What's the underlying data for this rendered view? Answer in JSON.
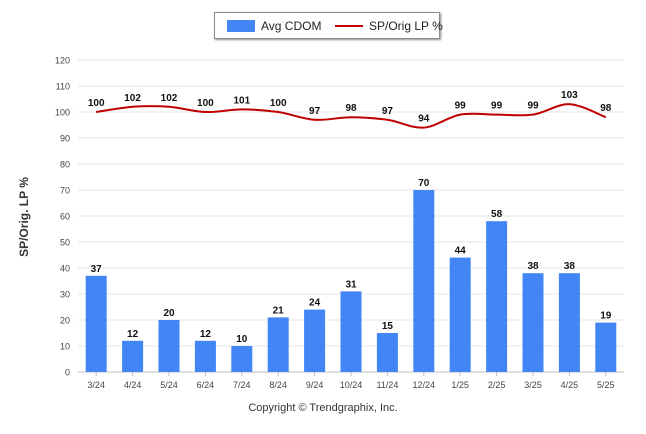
{
  "chart_data": {
    "type": "bar",
    "categories": [
      "3/24",
      "4/24",
      "5/24",
      "6/24",
      "7/24",
      "8/24",
      "9/24",
      "10/24",
      "11/24",
      "12/24",
      "1/25",
      "2/25",
      "3/25",
      "4/25",
      "5/25"
    ],
    "series": [
      {
        "name": "Avg CDOM",
        "type": "bar",
        "color": "#4285f4",
        "values": [
          37,
          12,
          20,
          12,
          10,
          21,
          24,
          31,
          15,
          70,
          44,
          58,
          38,
          38,
          19
        ]
      },
      {
        "name": "SP/Orig LP %",
        "type": "line",
        "color": "#c00000",
        "values": [
          100,
          102,
          102,
          100,
          101,
          100,
          97,
          98,
          97,
          94,
          99,
          99,
          99,
          103,
          98
        ]
      }
    ],
    "ylabel": "SP/Orig. LP %",
    "ylim": [
      0,
      120
    ],
    "yticks": [
      0,
      10,
      20,
      30,
      40,
      50,
      60,
      70,
      80,
      90,
      100,
      110,
      120
    ],
    "grid": true,
    "legend_position": "top"
  },
  "footer": "Copyright © Trendgraphix, Inc."
}
